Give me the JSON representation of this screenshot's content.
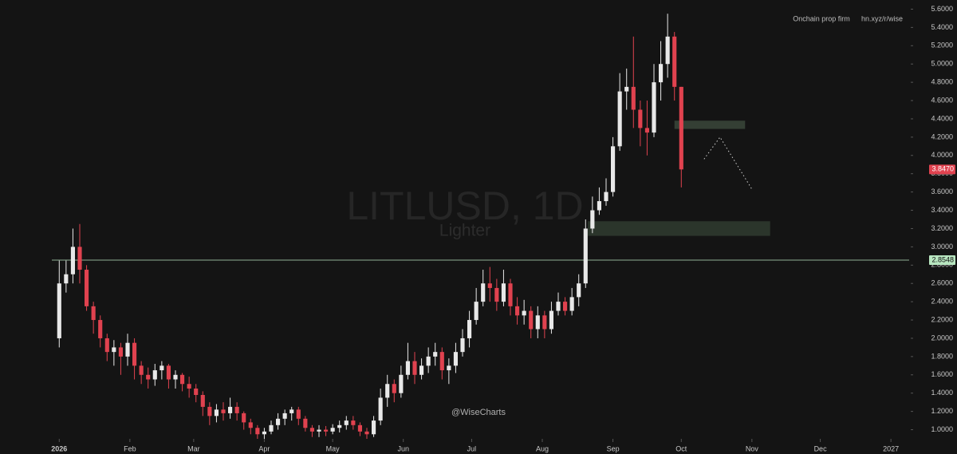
{
  "chart_data": {
    "type": "candlestick",
    "title": "LITLUSD, 1D",
    "subtitle": "Lighter",
    "watermark": "@WiseCharts",
    "header_notes": [
      "Onchain prop firm",
      "hn.xyz/r/wise"
    ],
    "up_color": "#e8e8e8",
    "down_color": "#e0424f",
    "x": [
      0,
      3,
      6,
      9,
      12,
      15,
      18,
      21,
      24,
      27,
      30,
      33,
      36,
      39,
      42,
      45,
      48,
      51,
      54,
      57,
      60,
      63,
      66,
      69,
      72,
      75,
      78,
      81,
      84,
      87,
      90,
      93,
      96,
      99,
      102,
      105,
      108,
      111,
      114,
      117,
      120,
      123,
      126,
      129,
      132,
      135,
      138,
      141,
      144,
      147,
      150,
      153,
      156,
      159,
      162,
      165,
      168,
      171,
      174,
      177,
      180,
      183,
      186,
      189,
      192,
      195,
      198,
      201,
      204,
      207,
      210,
      213,
      216,
      219,
      222,
      225,
      228,
      231,
      234,
      237,
      240,
      243,
      246,
      249,
      252,
      255,
      258,
      261,
      264,
      267,
      270,
      273
    ],
    "open": [
      2.0,
      2.6,
      2.7,
      3.0,
      2.75,
      2.35,
      2.2,
      2.0,
      1.85,
      1.9,
      1.8,
      1.95,
      1.7,
      1.6,
      1.55,
      1.65,
      1.7,
      1.55,
      1.6,
      1.5,
      1.45,
      1.38,
      1.25,
      1.15,
      1.22,
      1.18,
      1.25,
      1.18,
      1.08,
      1.02,
      0.95,
      0.98,
      1.05,
      1.12,
      1.18,
      1.22,
      1.12,
      1.02,
      0.98,
      1.0,
      0.98,
      1.02,
      1.05,
      1.1,
      1.05,
      0.98,
      0.95,
      1.1,
      1.35,
      1.5,
      1.4,
      1.6,
      1.75,
      1.6,
      1.7,
      1.8,
      1.85,
      1.65,
      1.7,
      1.85,
      2.0,
      2.2,
      2.4,
      2.6,
      2.55,
      2.4,
      2.6,
      2.35,
      2.25,
      2.3,
      2.1,
      2.25,
      2.1,
      2.3,
      2.4,
      2.3,
      2.45,
      2.6,
      3.2,
      3.4,
      3.5,
      3.6,
      4.1,
      4.7,
      4.75,
      4.5,
      4.3,
      4.25,
      4.8,
      5.0,
      5.3,
      4.75
    ],
    "high": [
      2.85,
      2.85,
      3.2,
      3.25,
      2.8,
      2.4,
      2.25,
      2.05,
      1.98,
      1.95,
      2.05,
      2.0,
      1.75,
      1.68,
      1.72,
      1.75,
      1.72,
      1.65,
      1.62,
      1.58,
      1.5,
      1.42,
      1.3,
      1.28,
      1.3,
      1.35,
      1.3,
      1.2,
      1.12,
      1.05,
      1.02,
      1.1,
      1.18,
      1.22,
      1.25,
      1.25,
      1.15,
      1.05,
      1.05,
      1.04,
      1.06,
      1.1,
      1.15,
      1.15,
      1.08,
      1.02,
      1.15,
      1.45,
      1.6,
      1.55,
      1.7,
      1.95,
      1.85,
      1.78,
      1.9,
      1.95,
      1.9,
      1.78,
      1.95,
      2.1,
      2.3,
      2.55,
      2.75,
      2.78,
      2.65,
      2.75,
      2.65,
      2.45,
      2.42,
      2.35,
      2.35,
      2.3,
      2.4,
      2.5,
      2.45,
      2.55,
      2.7,
      3.3,
      3.55,
      3.65,
      3.75,
      4.2,
      4.9,
      4.95,
      5.3,
      4.6,
      4.6,
      5.0,
      5.25,
      5.55,
      5.35,
      4.75
    ],
    "low": [
      1.9,
      2.5,
      2.6,
      2.6,
      2.3,
      2.05,
      1.9,
      1.75,
      1.7,
      1.6,
      1.7,
      1.55,
      1.5,
      1.45,
      1.48,
      1.55,
      1.45,
      1.45,
      1.42,
      1.35,
      1.3,
      1.15,
      1.05,
      1.08,
      1.1,
      1.12,
      1.1,
      1.0,
      0.95,
      0.9,
      0.9,
      0.95,
      1.0,
      1.05,
      1.1,
      1.05,
      0.98,
      0.92,
      0.92,
      0.93,
      0.95,
      0.97,
      1.0,
      1.0,
      0.93,
      0.9,
      0.92,
      1.05,
      1.25,
      1.3,
      1.35,
      1.55,
      1.5,
      1.55,
      1.62,
      1.7,
      1.55,
      1.5,
      1.62,
      1.8,
      1.9,
      2.15,
      2.35,
      2.4,
      2.3,
      2.35,
      2.25,
      2.15,
      2.15,
      2.0,
      2.0,
      2.0,
      2.05,
      2.25,
      2.25,
      2.25,
      2.35,
      2.55,
      3.15,
      3.35,
      3.45,
      3.55,
      4.05,
      4.5,
      4.3,
      4.1,
      4.0,
      4.2,
      4.6,
      4.85,
      4.6,
      3.65
    ],
    "close": [
      2.6,
      2.7,
      3.0,
      2.75,
      2.35,
      2.2,
      2.0,
      1.85,
      1.9,
      1.8,
      1.95,
      1.7,
      1.6,
      1.55,
      1.65,
      1.7,
      1.55,
      1.6,
      1.5,
      1.45,
      1.38,
      1.25,
      1.15,
      1.22,
      1.18,
      1.25,
      1.18,
      1.08,
      1.02,
      0.95,
      0.98,
      1.05,
      1.12,
      1.18,
      1.22,
      1.12,
      1.02,
      0.98,
      1.0,
      0.98,
      1.02,
      1.05,
      1.1,
      1.05,
      0.98,
      0.95,
      1.1,
      1.35,
      1.5,
      1.4,
      1.6,
      1.75,
      1.6,
      1.7,
      1.8,
      1.85,
      1.65,
      1.7,
      1.85,
      2.0,
      2.2,
      2.4,
      2.6,
      2.55,
      2.4,
      2.6,
      2.35,
      2.25,
      2.3,
      2.1,
      2.25,
      2.1,
      2.3,
      2.4,
      2.3,
      2.45,
      2.6,
      3.2,
      3.4,
      3.5,
      3.6,
      4.1,
      4.7,
      4.75,
      4.5,
      4.3,
      4.25,
      4.8,
      5.0,
      5.3,
      4.75,
      3.847
    ],
    "xlim": [
      -26,
      373
    ],
    "xticks": [
      {
        "value": 0,
        "label": "2026"
      },
      {
        "value": 31,
        "label": "Feb"
      },
      {
        "value": 59,
        "label": "Mar"
      },
      {
        "value": 90,
        "label": "Apr"
      },
      {
        "value": 120,
        "label": "May"
      },
      {
        "value": 151,
        "label": "Jun"
      },
      {
        "value": 181,
        "label": "Jul"
      },
      {
        "value": 212,
        "label": "Aug"
      },
      {
        "value": 243,
        "label": "Sep"
      },
      {
        "value": 273,
        "label": "Oct"
      },
      {
        "value": 304,
        "label": "Nov"
      },
      {
        "value": 334,
        "label": "Dec"
      },
      {
        "value": 365,
        "label": "2027"
      }
    ],
    "ylim": [
      0.9,
      5.7
    ],
    "yticks": [
      {
        "value": 1.0,
        "label": "1.0000"
      },
      {
        "value": 1.2,
        "label": "1.2000"
      },
      {
        "value": 1.4,
        "label": "1.4000"
      },
      {
        "value": 1.6,
        "label": "1.6000"
      },
      {
        "value": 1.8,
        "label": "1.8000"
      },
      {
        "value": 2.0,
        "label": "2.0000"
      },
      {
        "value": 2.2,
        "label": "2.2000"
      },
      {
        "value": 2.4,
        "label": "2.4000"
      },
      {
        "value": 2.6,
        "label": "2.6000"
      },
      {
        "value": 2.8,
        "label": "2.8000"
      },
      {
        "value": 3.0,
        "label": "3.0000"
      },
      {
        "value": 3.2,
        "label": "3.2000"
      },
      {
        "value": 3.4,
        "label": "3.4000"
      },
      {
        "value": 3.6,
        "label": "3.6000"
      },
      {
        "value": 3.8,
        "label": "3.8000"
      },
      {
        "value": 4.0,
        "label": "4.0000"
      },
      {
        "value": 4.2,
        "label": "4.2000"
      },
      {
        "value": 4.4,
        "label": "4.4000"
      },
      {
        "value": 4.6,
        "label": "4.6000"
      },
      {
        "value": 4.8,
        "label": "4.8000"
      },
      {
        "value": 5.0,
        "label": "5.0000"
      },
      {
        "value": 5.2,
        "label": "5.2000"
      },
      {
        "value": 5.4,
        "label": "5.4000"
      },
      {
        "value": 5.6,
        "label": "5.6000"
      }
    ],
    "level_line": {
      "value": 2.8548,
      "color": "#b8e6c0"
    },
    "last_price": {
      "value": 3.847,
      "label": "3.8470",
      "color": "#e0424f"
    },
    "zones": [
      {
        "x0": 232,
        "x1": 312,
        "y0": 3.12,
        "y1": 3.28,
        "color": "#2f3b2f"
      },
      {
        "x0": 270,
        "x1": 301,
        "y0": 4.29,
        "y1": 4.38,
        "color": "#3a473a"
      }
    ],
    "projection": {
      "x": [
        283,
        290,
        304
      ],
      "y": [
        3.96,
        4.2,
        3.63
      ]
    }
  }
}
